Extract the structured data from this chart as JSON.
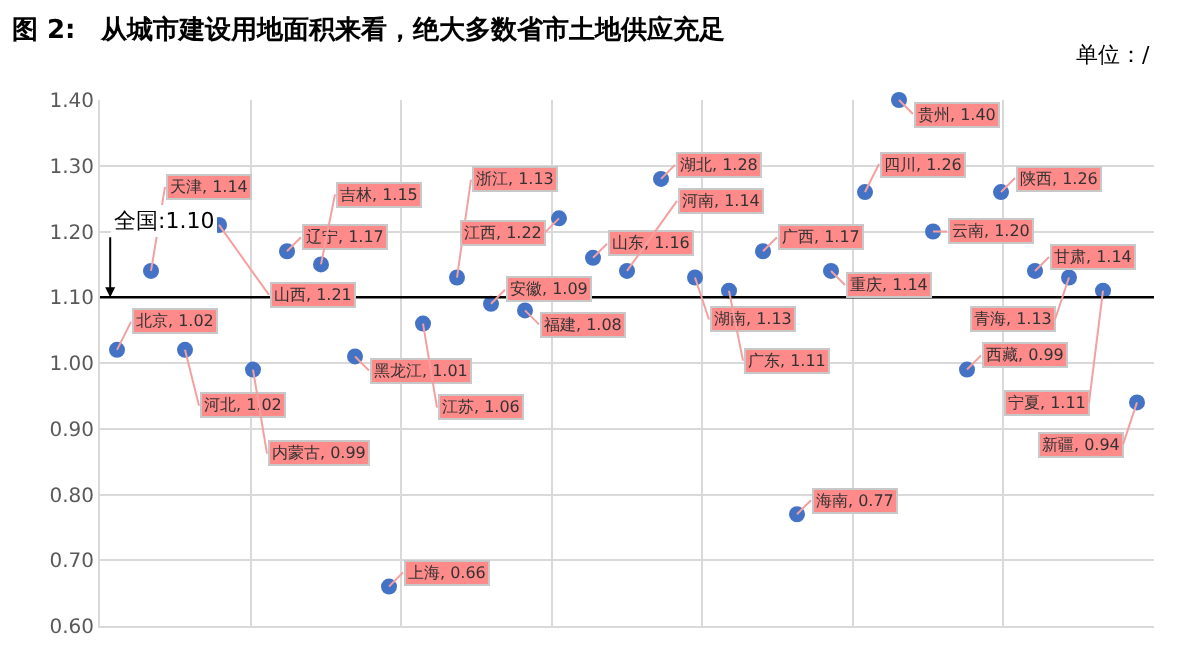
{
  "chart_data": {
    "type": "scatter",
    "title": "图 2:　从城市建设用地面积来看，绝大多数省市土地供应充足",
    "subtitle": "单位：/",
    "categories": [
      null,
      null,
      null,
      null,
      null,
      null,
      null,
      null,
      null,
      null,
      null,
      null,
      null,
      null,
      null,
      null,
      null,
      null,
      null,
      null,
      null,
      null,
      null,
      null,
      null,
      null,
      null,
      null,
      null,
      null,
      null
    ],
    "series": [
      {
        "color": "#4472c4",
        "values": [
          1.02,
          1.14,
          1.02,
          1.21,
          0.99,
          1.17,
          1.15,
          1.01,
          0.66,
          1.06,
          1.13,
          1.09,
          1.08,
          1.22,
          1.16,
          1.14,
          1.28,
          1.13,
          1.11,
          1.17,
          0.77,
          1.14,
          1.26,
          1.4,
          1.2,
          0.99,
          1.26,
          1.14,
          1.13,
          1.11,
          0.94
        ],
        "value_labels": [
          "北京, 1.02",
          "天津, 1.14",
          "河北, 1.02",
          "山西, 1.21",
          "内蒙古, 0.99",
          "辽宁, 1.17",
          "吉林, 1.15",
          "黑龙江, 1.01",
          "上海, 0.66",
          "江苏, 1.06",
          "浙江, 1.13",
          "安徽, 1.09",
          "福建, 1.08",
          "江西, 1.22",
          "山东, 1.16",
          "河南, 1.14",
          "湖北, 1.28",
          "湖南, 1.13",
          "广东, 1.11",
          "广西, 1.17",
          "海南, 0.77",
          "重庆, 1.14",
          "四川, 1.26",
          "贵州, 1.40",
          "云南, 1.20",
          "西藏, 0.99",
          "陕西, 1.26",
          "甘肃, 1.14",
          "青海, 1.13",
          "宁夏, 1.11",
          "新疆, 0.94"
        ]
      }
    ],
    "ylim": [
      0.6,
      1.4
    ],
    "yticks": [
      {
        "value": 0.6,
        "label": "0.60"
      },
      {
        "value": 0.7,
        "label": "0.70"
      },
      {
        "value": 0.8,
        "label": "0.80"
      },
      {
        "value": 0.9,
        "label": "0.90"
      },
      {
        "value": 1.0,
        "label": "1.00"
      },
      {
        "value": 1.1,
        "label": "1.10"
      },
      {
        "value": 1.2,
        "label": "1.20"
      },
      {
        "value": 1.3,
        "label": "1.30"
      },
      {
        "value": 1.4,
        "label": "1.40"
      }
    ],
    "ref_lines": [
      {
        "axis": "y",
        "value": 1.1,
        "label": "全国:1.10",
        "color": "#000000"
      }
    ],
    "grid": true,
    "legend": false,
    "marker": "circle",
    "tick_labels": "y"
  }
}
